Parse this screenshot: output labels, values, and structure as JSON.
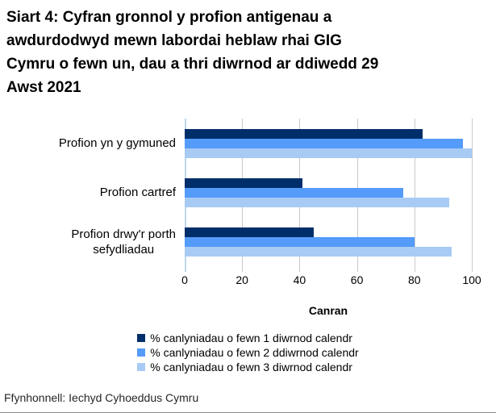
{
  "title_lines": [
    "Siart 4: Cyfran gronnol y profion antigenau a",
    "awdurdodwyd mewn labordai heblaw rhai GIG",
    "Cymru o fewn un, dau a thri diwrnod ar ddiwedd 29",
    "Awst 2021"
  ],
  "chart_data": {
    "type": "bar",
    "orientation": "horizontal",
    "title": "Siart 4: Cyfran gronnol y profion antigenau a awdurdodwyd mewn labordai heblaw rhai GIG Cymru o fewn un, dau a thri diwrnod ar ddiwedd 29 Awst 2021",
    "categories": [
      "Profion yn y gymuned",
      "Profion cartref",
      "Profion drwy'r porth\nsefydliadau"
    ],
    "series": [
      {
        "name": "% canlyniadau o fewn 1 diwrnod calendr",
        "color": "#002E6B",
        "values": [
          83,
          41,
          45
        ]
      },
      {
        "name": "% canlyniadau o fewn 2 ddiwrnod calendr",
        "color": "#549BFA",
        "values": [
          97,
          76,
          80
        ]
      },
      {
        "name": "% canlyniadau o fewn 3 diwrnod calendr",
        "color": "#A8CBF5",
        "values": [
          100,
          92,
          93
        ]
      }
    ],
    "xlabel": "Canran",
    "xlim": [
      0,
      100
    ],
    "xticks": [
      0,
      20,
      40,
      60,
      80,
      100
    ],
    "grid": true,
    "legend_position": "bottom",
    "gridline_color": "#C9C9C9",
    "zero_axis_color": "#BDD7EE"
  },
  "source": "Ffynhonnell: Iechyd Cyhoeddus Cymru"
}
